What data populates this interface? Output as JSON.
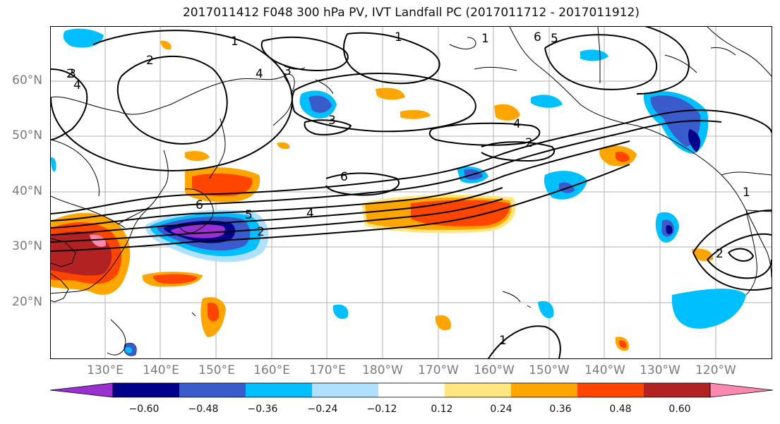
{
  "title": "2017011412 F048 300 hPa PV, IVT Landfall PC (2017011712 - 2017011912)",
  "lat_labels": [
    "60°N",
    "50°N",
    "40°N",
    "30°N",
    "20°N"
  ],
  "lon_labels": [
    "130°E",
    "140°E",
    "150°E",
    "160°E",
    "170°E",
    "180°W",
    "170°W",
    "160°W",
    "150°W",
    "140°W",
    "130°W",
    "120°W"
  ],
  "contour_labels": [
    "2",
    "3",
    "4",
    "1",
    "2",
    "1",
    "4",
    "3",
    "1",
    "6",
    "5",
    "3",
    "2",
    "6",
    "6",
    "4",
    "5",
    "2",
    "4",
    "1",
    "2",
    "1"
  ],
  "colorbar": {
    "ticks": [
      "−0.60",
      "−0.48",
      "−0.36",
      "−0.24",
      "−0.12",
      "0.12",
      "0.24",
      "0.36",
      "0.48",
      "0.60"
    ],
    "colors": [
      "#9b30d0",
      "#00008b",
      "#3a5bcc",
      "#00bfff",
      "#b0e0ff",
      "#ffffff",
      "#ffe680",
      "#ffa500",
      "#ff4500",
      "#b22222",
      "#ff88b0"
    ],
    "extend": "both"
  }
}
